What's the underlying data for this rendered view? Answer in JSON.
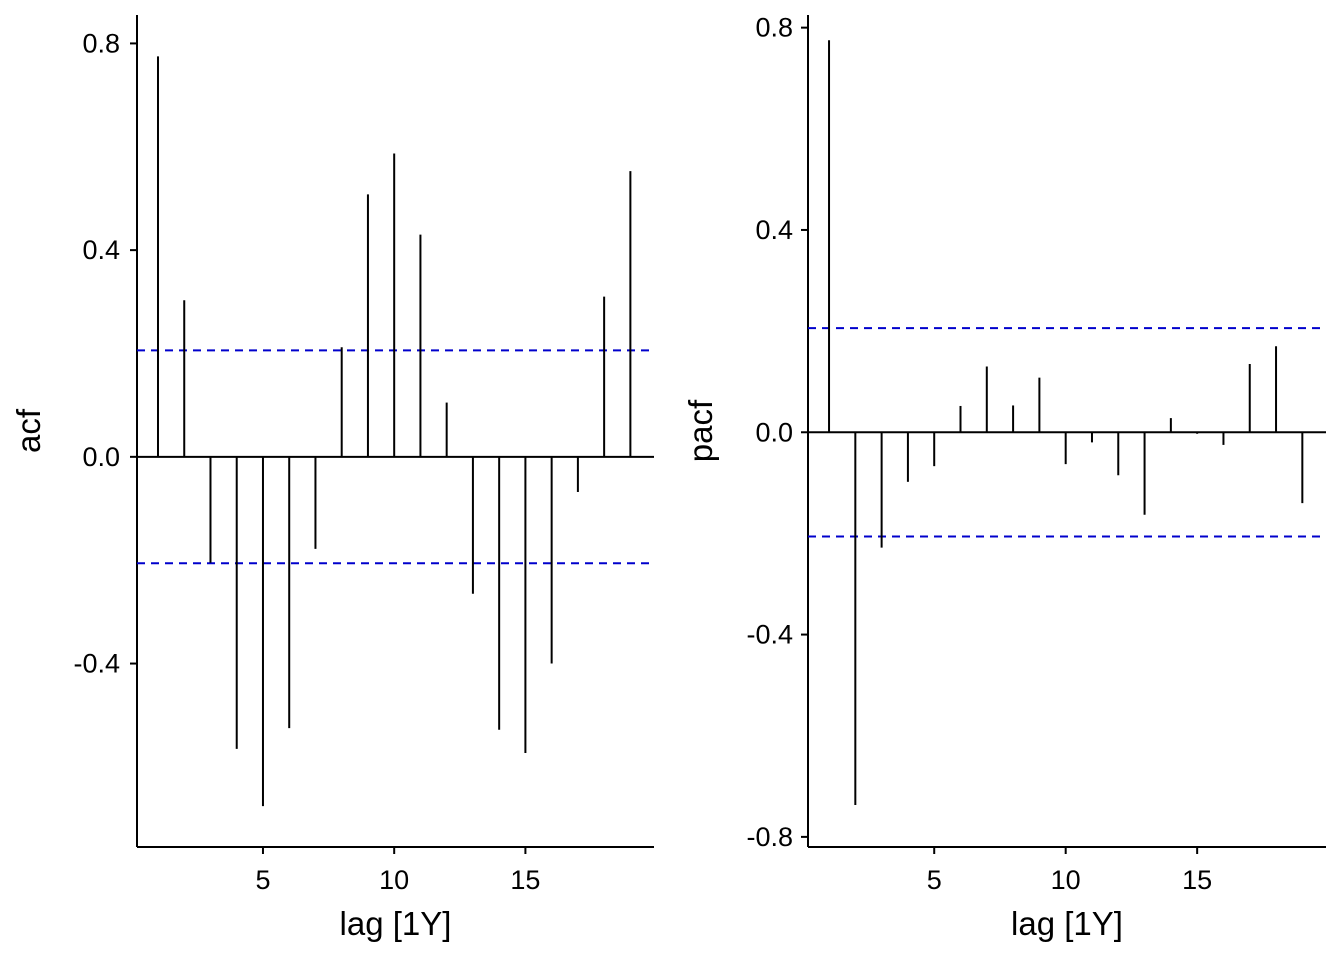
{
  "chart_data": [
    {
      "type": "bar",
      "subtype": "correlogram",
      "xlabel": "lag [1Y]",
      "ylabel": "acf",
      "x": [
        1,
        2,
        3,
        4,
        5,
        6,
        7,
        8,
        9,
        10,
        11,
        12,
        13,
        14,
        15,
        16,
        17,
        18,
        19
      ],
      "values": [
        0.775,
        0.303,
        -0.205,
        -0.565,
        -0.676,
        -0.525,
        -0.178,
        0.212,
        0.508,
        0.587,
        0.43,
        0.105,
        -0.265,
        -0.528,
        -0.573,
        -0.4,
        -0.068,
        0.31,
        0.553
      ],
      "confidence_bound": 0.206,
      "xlim": [
        0.2,
        19.9
      ],
      "ylim": [
        -0.755,
        0.855
      ],
      "xticks": [
        5,
        10,
        15
      ],
      "yticks": [
        0.8,
        0.4,
        0.0,
        -0.4
      ],
      "ytick_labels": [
        "0.8",
        "0.4",
        "0.0",
        "-0.4"
      ],
      "colors": {
        "bar": "#000000",
        "bound": "#0000cc",
        "axis": "#000000"
      }
    },
    {
      "type": "bar",
      "subtype": "correlogram",
      "xlabel": "lag [1Y]",
      "ylabel": "pacf",
      "x": [
        1,
        2,
        3,
        4,
        5,
        6,
        7,
        8,
        9,
        10,
        11,
        12,
        13,
        14,
        15,
        16,
        17,
        18,
        19
      ],
      "values": [
        0.775,
        -0.737,
        -0.228,
        -0.098,
        -0.067,
        0.052,
        0.13,
        0.053,
        0.108,
        -0.063,
        -0.02,
        -0.085,
        -0.163,
        0.028,
        -0.003,
        -0.025,
        0.135,
        0.17,
        -0.14
      ],
      "confidence_bound": 0.206,
      "xlim": [
        0.2,
        19.9
      ],
      "ylim": [
        -0.82,
        0.825
      ],
      "xticks": [
        5,
        10,
        15
      ],
      "yticks": [
        0.8,
        0.4,
        0.0,
        -0.4,
        -0.8
      ],
      "ytick_labels": [
        "0.8",
        "0.4",
        "0.0",
        "-0.4",
        "-0.8"
      ],
      "colors": {
        "bar": "#000000",
        "bound": "#0000cc",
        "axis": "#000000"
      }
    }
  ]
}
